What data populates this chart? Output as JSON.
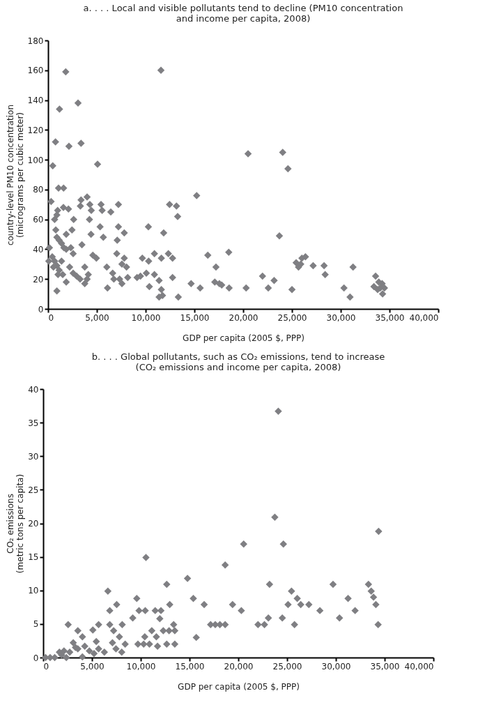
{
  "chart_data": [
    {
      "type": "scatter",
      "title": "a. . . . Local and visible pollutants tend to decline (PM10 concentration\nand income per capita, 2008)",
      "xlabel": "GDP per capita (2005 $, PPP)",
      "ylabel": "country-level PM10 concentration\n(micrograms per cubic meter)",
      "marker": "diamond",
      "grid": false,
      "legend": false,
      "xlim": [
        0,
        40000
      ],
      "xticks": [
        0,
        {
          "value": 5000,
          "label": "5,000"
        },
        {
          "value": 10000,
          "label": "10,000"
        },
        {
          "value": 15000,
          "label": "15,000"
        },
        {
          "value": 20000,
          "label": "20,000"
        },
        {
          "value": 25000,
          "label": "25,000"
        },
        {
          "value": 30000,
          "label": "30,000"
        },
        {
          "value": 35000,
          "label": "35,000"
        },
        {
          "value": 40000,
          "label": "40,000"
        }
      ],
      "ylim": [
        0,
        180
      ],
      "yticks": [
        0,
        20,
        40,
        60,
        80,
        100,
        120,
        140,
        160,
        180
      ],
      "series": [
        {
          "color": "#7f7f83",
          "x": [
            1810,
            11570,
            3070,
            1170,
            760,
            3380,
            2140,
            480,
            5070,
            1070,
            1590,
            310,
            3310,
            3380,
            4000,
            4280,
            4430,
            1570,
            2090,
            5430,
            5540,
            6430,
            7210,
            980,
            900,
            670,
            2620,
            2450,
            4240,
            5330,
            7210,
            7810,
            790,
            1860,
            4400,
            5660,
            7090,
            10280,
            11850,
            12450,
            13160,
            13280,
            15230,
            140,
            70,
            900,
            1140,
            1380,
            1620,
            1860,
            2330,
            2570,
            3470,
            4590,
            4950,
            7040,
            7810,
            7570,
            8040,
            430,
            670,
            900,
            1140,
            1380,
            1500,
            1020,
            550,
            2210,
            2570,
            2930,
            3280,
            3760,
            4120,
            3760,
            4000,
            1860,
            900,
            6020,
            6090,
            6620,
            6740,
            7330,
            7570,
            8160,
            9120,
            9470,
            9660,
            10070,
            10310,
            10380,
            10900,
            10900,
            11380,
            11610,
            11380,
            11730,
            11610,
            12330,
            12760,
            12760,
            13350,
            14660,
            15590,
            16370,
            17210,
            17090,
            17560,
            17800,
            18520,
            18560,
            20500,
            24050,
            24590,
            23710,
            21980,
            22570,
            23170,
            25000,
            25430,
            25670,
            26020,
            26380,
            25900,
            27170,
            28290,
            28400,
            30330,
            30950,
            31260,
            33570,
            33400,
            33900,
            33780,
            34240,
            34480,
            34290,
            34050,
            20300
          ],
          "values": [
            159,
            160,
            138,
            134,
            112,
            111,
            109,
            96,
            97,
            81,
            81,
            72,
            69,
            73,
            75,
            70,
            66,
            68,
            67,
            70,
            66,
            65,
            70,
            66,
            63,
            60,
            60,
            53,
            60,
            55,
            55,
            51,
            53,
            50,
            50,
            48,
            46,
            55,
            51,
            70,
            69,
            62,
            76,
            41,
            32,
            48,
            46,
            44,
            41,
            40,
            41,
            37,
            43,
            36,
            34,
            37,
            34,
            30,
            28,
            35,
            32,
            29,
            26,
            32,
            23,
            23,
            28,
            28,
            24,
            22,
            20,
            28,
            23,
            17,
            20,
            18,
            12,
            28,
            14,
            24,
            20,
            20,
            17,
            21,
            21,
            22,
            34,
            24,
            32,
            15,
            23,
            37,
            19,
            34,
            8,
            9,
            13,
            37,
            34,
            21,
            8,
            17,
            14,
            36,
            28,
            18,
            17,
            16,
            38,
            14,
            104,
            105,
            94,
            49,
            22,
            14,
            19,
            13,
            31,
            28,
            34,
            35,
            30,
            29,
            29,
            23,
            14,
            8,
            28,
            22,
            15,
            18,
            13,
            17,
            14,
            10,
            14,
            14
          ]
        }
      ]
    },
    {
      "type": "scatter",
      "title": "b. . . . Global pollutants, such as CO₂ emissions, tend to increase\n(CO₂ emissions and income per capita, 2008)",
      "xlabel": "GDP per capita (2005 $, PPP)",
      "ylabel": "CO₂ emissions\n(metric tons per capita)",
      "marker": "diamond",
      "grid": false,
      "legend": false,
      "xlim": [
        0,
        40000
      ],
      "xticks": [
        0,
        {
          "value": 5000,
          "label": "5,000"
        },
        {
          "value": 10000,
          "label": "10,000"
        },
        {
          "value": 15000,
          "label": "15,000"
        },
        {
          "value": 20000,
          "label": "20,000"
        },
        {
          "value": 25000,
          "label": "25,000"
        },
        {
          "value": 30000,
          "label": "30,000"
        },
        {
          "value": 35000,
          "label": "35,000"
        },
        {
          "value": 40000,
          "label": "40,000"
        }
      ],
      "ylim": [
        0,
        40
      ],
      "yticks": [
        0,
        5,
        10,
        15,
        20,
        25,
        30,
        35,
        40
      ],
      "series": [
        {
          "color": "#7f7f83",
          "x": [
            10530,
            6630,
            9590,
            7530,
            6820,
            9180,
            9820,
            10460,
            12660,
            12970,
            11480,
            12070,
            11950,
            14790,
            15390,
            16500,
            18650,
            19410,
            20310,
            17160,
            17640,
            18110,
            18650,
            15690,
            2560,
            3550,
            5680,
            5090,
            6820,
            8100,
            7220,
            11130,
            12310,
            13370,
            13490,
            12900,
            9710,
            10300,
            10890,
            11720,
            12660,
            13490,
            10410,
            11600,
            7100,
            7460,
            8050,
            8400,
            7810,
            5440,
            5680,
            6270,
            5210,
            4020,
            4260,
            4730,
            4020,
            3080,
            3310,
            2720,
            3550,
            1660,
            2130,
            1890,
            240,
            710,
            1180,
            2370,
            24100,
            23740,
            24620,
            20550,
            34380,
            23200,
            25450,
            26040,
            26400,
            25100,
            27230,
            29710,
            28360,
            31250,
            33340,
            33620,
            33860,
            34100,
            31970,
            30370,
            34330,
            24510,
            25760,
            22020,
            22680,
            23080
          ],
          "values": [
            14.9,
            9.9,
            8.8,
            7.9,
            7.0,
            5.9,
            7.0,
            7.0,
            10.9,
            7.9,
            7.0,
            7.0,
            5.8,
            11.8,
            8.8,
            7.9,
            13.8,
            7.9,
            7.0,
            4.9,
            4.9,
            4.9,
            4.9,
            3.0,
            4.9,
            4.0,
            4.9,
            4.1,
            4.9,
            4.9,
            4.0,
            4.0,
            4.0,
            4.9,
            4.0,
            4.0,
            2.0,
            2.0,
            2.0,
            1.7,
            2.0,
            2.0,
            3.1,
            3.1,
            2.2,
            1.3,
            0.8,
            2.0,
            3.1,
            2.4,
            1.3,
            0.8,
            0.6,
            3.1,
            1.7,
            1.0,
            0.1,
            2.2,
            1.5,
            0.8,
            1.3,
            0.8,
            1.0,
            0.4,
            0,
            0,
            0,
            0,
            36.7,
            20.9,
            16.9,
            16.9,
            18.8,
            10.9,
            9.9,
            8.8,
            7.9,
            7.9,
            7.9,
            10.9,
            7.0,
            8.8,
            10.9,
            9.9,
            9.0,
            7.9,
            7.0,
            5.9,
            4.9,
            5.9,
            4.9,
            4.9,
            4.9,
            5.9
          ]
        }
      ]
    }
  ]
}
